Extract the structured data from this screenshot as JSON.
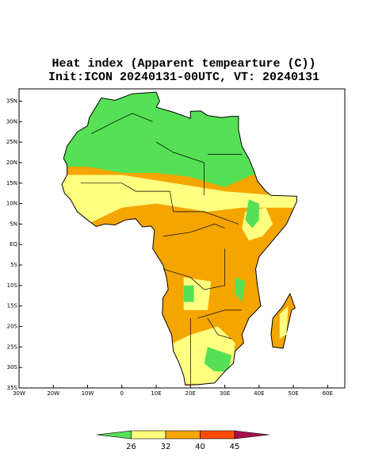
{
  "map": {
    "title": "Heat index (Apparent tempearture (C))",
    "subtitle": "Init:ICON 20240131-00UTC, VT: 20240131",
    "lonlim": [
      -30,
      65
    ],
    "latlim": [
      -35,
      38
    ],
    "lon_ticks": [
      {
        "value": -30,
        "label": "30W"
      },
      {
        "value": -20,
        "label": "20W"
      },
      {
        "value": -10,
        "label": "10W"
      },
      0,
      {
        "value": 10,
        "label": "10E"
      },
      {
        "value": 20,
        "label": "20E"
      },
      {
        "value": 30,
        "label": "30E"
      },
      {
        "value": 40,
        "label": "40E"
      },
      {
        "value": 50,
        "label": "50E"
      },
      {
        "value": 60,
        "label": "60E"
      }
    ],
    "lat_ticks": [
      {
        "value": 35,
        "label": "35N"
      },
      {
        "value": 30,
        "label": "30N"
      },
      {
        "value": 25,
        "label": "25N"
      },
      {
        "value": 20,
        "label": "20N"
      },
      {
        "value": 15,
        "label": "15N"
      },
      {
        "value": 10,
        "label": "10N"
      },
      {
        "value": 5,
        "label": "5N"
      },
      {
        "value": 0,
        "label": "EQ"
      },
      {
        "value": -5,
        "label": "5S"
      },
      {
        "value": -10,
        "label": "10S"
      },
      {
        "value": -15,
        "label": "15S"
      },
      {
        "value": -20,
        "label": "20S"
      },
      {
        "value": -25,
        "label": "25S"
      },
      {
        "value": -30,
        "label": "30S"
      },
      {
        "value": -35,
        "label": "35S"
      }
    ],
    "colorbar": {
      "levels": [
        26,
        32,
        40,
        45
      ],
      "colors": [
        "#55e055",
        "#ffff80",
        "#f5a500",
        "#ff4a00",
        "#a8104a"
      ]
    }
  }
}
